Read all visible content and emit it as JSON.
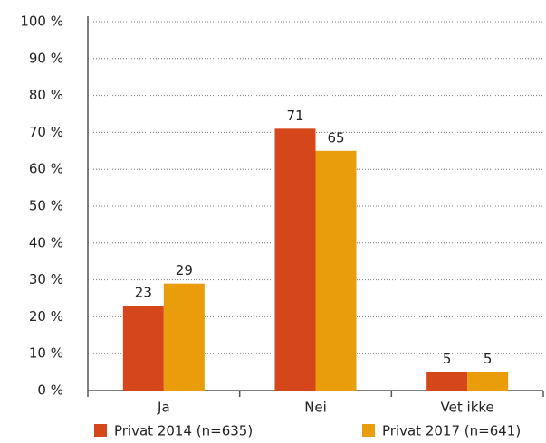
{
  "chart_data": {
    "type": "bar",
    "categories": [
      "Ja",
      "Nei",
      "Vet ikke"
    ],
    "series": [
      {
        "name": "Privat 2014 (n=635)",
        "color": "#d5461b",
        "values": [
          23,
          71,
          5
        ]
      },
      {
        "name": "Privat 2017 (n=641)",
        "color": "#e99d0b",
        "values": [
          29,
          65,
          5
        ]
      }
    ],
    "ylim": [
      0,
      100
    ],
    "yticks": [
      {
        "value": 0,
        "label": "0 %"
      },
      {
        "value": 10,
        "label": "10 %"
      },
      {
        "value": 20,
        "label": "20 %"
      },
      {
        "value": 30,
        "label": "30 %"
      },
      {
        "value": 40,
        "label": "40 %"
      },
      {
        "value": 50,
        "label": "50 %"
      },
      {
        "value": 60,
        "label": "60 %"
      },
      {
        "value": 70,
        "label": "70 %"
      },
      {
        "value": 80,
        "label": "80 %"
      },
      {
        "value": 90,
        "label": "90 %"
      },
      {
        "value": 100,
        "label": "100 %"
      }
    ],
    "grid": true,
    "legend": "bottom"
  }
}
